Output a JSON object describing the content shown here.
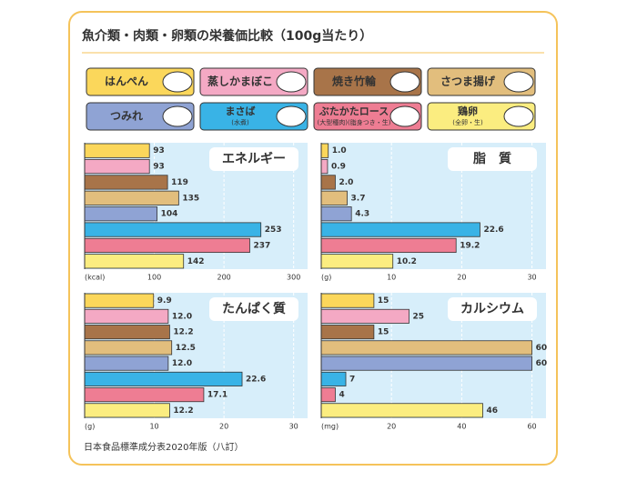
{
  "title": "魚介類・肉類・卵類の栄養価比較（100g当たり）",
  "source": "日本食品標準成分表2020年版（八訂）",
  "legend": [
    {
      "name": "はんぺん",
      "color": "#fbd75b"
    },
    {
      "name": "蒸しかまぼこ",
      "color": "#f4a9c4"
    },
    {
      "name": "焼き竹輪",
      "color": "#a87449"
    },
    {
      "name": "さつま揚げ",
      "color": "#e2be7d"
    },
    {
      "name": "つみれ",
      "color": "#8fa3d4"
    },
    {
      "name": "まさば",
      "note": "(水煮)",
      "color": "#39b3e6"
    },
    {
      "name": "ぶたかたロース",
      "note": "(大型種肉)(脂身つき・生)",
      "color": "#ee7d93"
    },
    {
      "name": "鶏卵",
      "note": "(全卵・生)",
      "color": "#fbed80"
    }
  ],
  "chart_data": [
    {
      "type": "bar",
      "orientation": "horizontal",
      "title": "エネルギー",
      "values": [
        93,
        93,
        119,
        135,
        104,
        253,
        237,
        142
      ],
      "xlim": [
        0,
        320
      ],
      "xticks": [
        {
          "value": 0,
          "label": "(kcal)"
        },
        100,
        200,
        300
      ],
      "grid": true
    },
    {
      "type": "bar",
      "orientation": "horizontal",
      "title": "脂　質",
      "values": [
        1.0,
        0.9,
        2.0,
        3.7,
        4.3,
        22.6,
        19.2,
        10.2
      ],
      "value_labels": [
        "1.0",
        "0.9",
        "2.0",
        "3.7",
        "4.3",
        "22.6",
        "19.2",
        "10.2"
      ],
      "xlim": [
        0,
        32
      ],
      "xticks": [
        {
          "value": 0,
          "label": "(g)"
        },
        10,
        20,
        30
      ],
      "grid": true
    },
    {
      "type": "bar",
      "orientation": "horizontal",
      "title": "たんぱく質",
      "values": [
        9.9,
        12.0,
        12.2,
        12.5,
        12.0,
        22.6,
        17.1,
        12.2
      ],
      "value_labels": [
        "9.9",
        "12.0",
        "12.2",
        "12.5",
        "12.0",
        "22.6",
        "17.1",
        "12.2"
      ],
      "xlim": [
        0,
        32
      ],
      "xticks": [
        {
          "value": 0,
          "label": "(g)"
        },
        10,
        20,
        30
      ],
      "grid": true
    },
    {
      "type": "bar",
      "orientation": "horizontal",
      "title": "カルシウム",
      "values": [
        15,
        25,
        15,
        60,
        60,
        7,
        4,
        46
      ],
      "xlim": [
        0,
        64
      ],
      "xticks": [
        {
          "value": 0,
          "label": "(mg)"
        },
        20,
        40,
        60
      ],
      "grid": true
    }
  ]
}
